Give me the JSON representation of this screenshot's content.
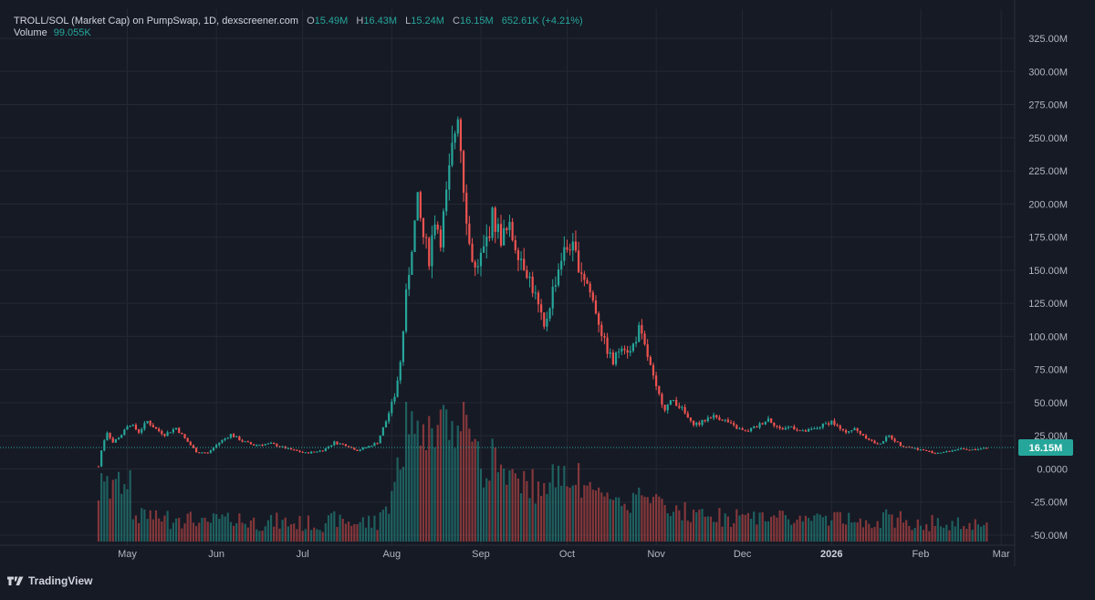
{
  "legend": {
    "symbol": "TROLL/SOL (Market Cap) on PumpSwap, 1D, dexscreener.com",
    "open_label": "O",
    "open": "15.49M",
    "high_label": "H",
    "high": "16.43M",
    "low_label": "L",
    "low": "15.24M",
    "close_label": "C",
    "close": "16.15M",
    "change": "652.61K (+4.21%)",
    "volume_label": "Volume",
    "volume_value": "99.055K"
  },
  "footer": {
    "brand": "TradingView",
    "logo_icon": "tradingview-logo-icon"
  },
  "colors": {
    "up": "#26a69a",
    "down": "#ef5350",
    "background": "#161a25",
    "grid": "#242833",
    "price_tag": "#26a69a"
  },
  "chart_data": {
    "type": "candlestick",
    "y_unit": "M",
    "ylim": [
      -55,
      330
    ],
    "yticks": [
      "325.00M",
      "300.00M",
      "275.00M",
      "250.00M",
      "225.00M",
      "200.00M",
      "175.00M",
      "150.00M",
      "125.00M",
      "100.00M",
      "75.00M",
      "50.00M",
      "25.00M",
      "0.0000",
      "-25.00M",
      "-50.00M"
    ],
    "ytick_values": [
      325,
      300,
      275,
      250,
      225,
      200,
      175,
      150,
      125,
      100,
      75,
      50,
      25,
      0,
      -25,
      -50
    ],
    "x_start": "2025-04-21",
    "x_end": "2026-02-28",
    "xticks": [
      {
        "label": "May",
        "date": "2025-05-01",
        "bold": false
      },
      {
        "label": "Jun",
        "date": "2025-06-01",
        "bold": false
      },
      {
        "label": "Jul",
        "date": "2025-07-01",
        "bold": false
      },
      {
        "label": "Aug",
        "date": "2025-08-01",
        "bold": false
      },
      {
        "label": "Sep",
        "date": "2025-09-01",
        "bold": false
      },
      {
        "label": "Oct",
        "date": "2025-10-01",
        "bold": false
      },
      {
        "label": "Nov",
        "date": "2025-11-01",
        "bold": false
      },
      {
        "label": "Dec",
        "date": "2025-12-01",
        "bold": false
      },
      {
        "label": "2026",
        "date": "2026-01-01",
        "bold": true
      },
      {
        "label": "Feb",
        "date": "2026-02-01",
        "bold": false
      },
      {
        "label": "Mar",
        "date": "2026-03-01",
        "bold": false
      }
    ],
    "last_price": {
      "label": "16.15M",
      "value": 16.15
    },
    "close_path": [
      [
        "2025-04-21",
        2
      ],
      [
        "2025-04-22",
        14
      ],
      [
        "2025-04-23",
        22
      ],
      [
        "2025-04-24",
        28
      ],
      [
        "2025-04-26",
        20
      ],
      [
        "2025-04-29",
        26
      ],
      [
        "2025-05-02",
        34
      ],
      [
        "2025-05-05",
        28
      ],
      [
        "2025-05-08",
        36
      ],
      [
        "2025-05-11",
        30
      ],
      [
        "2025-05-14",
        26
      ],
      [
        "2025-05-18",
        31
      ],
      [
        "2025-05-21",
        23
      ],
      [
        "2025-05-25",
        13
      ],
      [
        "2025-05-29",
        12
      ],
      [
        "2025-06-02",
        20
      ],
      [
        "2025-06-06",
        26
      ],
      [
        "2025-06-10",
        21
      ],
      [
        "2025-06-14",
        18
      ],
      [
        "2025-06-20",
        19
      ],
      [
        "2025-06-26",
        15
      ],
      [
        "2025-07-02",
        12
      ],
      [
        "2025-07-08",
        14
      ],
      [
        "2025-07-12",
        20
      ],
      [
        "2025-07-16",
        18
      ],
      [
        "2025-07-20",
        14
      ],
      [
        "2025-07-24",
        17
      ],
      [
        "2025-07-27",
        20
      ],
      [
        "2025-07-30",
        36
      ],
      [
        "2025-08-02",
        55
      ],
      [
        "2025-08-04",
        80
      ],
      [
        "2025-08-06",
        130
      ],
      [
        "2025-08-08",
        170
      ],
      [
        "2025-08-10",
        200
      ],
      [
        "2025-08-12",
        175
      ],
      [
        "2025-08-14",
        160
      ],
      [
        "2025-08-16",
        190
      ],
      [
        "2025-08-18",
        175
      ],
      [
        "2025-08-20",
        205
      ],
      [
        "2025-08-22",
        240
      ],
      [
        "2025-08-24",
        272
      ],
      [
        "2025-08-26",
        215
      ],
      [
        "2025-08-28",
        170
      ],
      [
        "2025-08-30",
        150
      ],
      [
        "2025-09-02",
        165
      ],
      [
        "2025-09-05",
        190
      ],
      [
        "2025-09-08",
        175
      ],
      [
        "2025-09-11",
        180
      ],
      [
        "2025-09-14",
        165
      ],
      [
        "2025-09-17",
        150
      ],
      [
        "2025-09-20",
        130
      ],
      [
        "2025-09-23",
        105
      ],
      [
        "2025-09-26",
        135
      ],
      [
        "2025-09-29",
        160
      ],
      [
        "2025-10-02",
        170
      ],
      [
        "2025-10-05",
        155
      ],
      [
        "2025-10-08",
        140
      ],
      [
        "2025-10-11",
        120
      ],
      [
        "2025-10-14",
        95
      ],
      [
        "2025-10-17",
        80
      ],
      [
        "2025-10-20",
        95
      ],
      [
        "2025-10-23",
        88
      ],
      [
        "2025-10-26",
        105
      ],
      [
        "2025-10-29",
        85
      ],
      [
        "2025-11-01",
        60
      ],
      [
        "2025-11-04",
        46
      ],
      [
        "2025-11-07",
        52
      ],
      [
        "2025-11-10",
        45
      ],
      [
        "2025-11-13",
        35
      ],
      [
        "2025-11-16",
        34
      ],
      [
        "2025-11-20",
        40
      ],
      [
        "2025-11-24",
        38
      ],
      [
        "2025-11-28",
        32
      ],
      [
        "2025-12-02",
        28
      ],
      [
        "2025-12-06",
        32
      ],
      [
        "2025-12-10",
        38
      ],
      [
        "2025-12-14",
        30
      ],
      [
        "2025-12-18",
        32
      ],
      [
        "2025-12-22",
        28
      ],
      [
        "2025-12-26",
        30
      ],
      [
        "2026-01-01",
        36
      ],
      [
        "2026-01-05",
        28
      ],
      [
        "2026-01-09",
        30
      ],
      [
        "2026-01-13",
        24
      ],
      [
        "2026-01-17",
        18
      ],
      [
        "2026-01-21",
        25
      ],
      [
        "2026-01-25",
        18
      ],
      [
        "2026-01-29",
        16
      ],
      [
        "2026-02-02",
        14
      ],
      [
        "2026-02-06",
        12
      ],
      [
        "2026-02-10",
        13
      ],
      [
        "2026-02-14",
        15
      ],
      [
        "2026-02-18",
        14
      ],
      [
        "2026-02-22",
        15.5
      ],
      [
        "2026-02-24",
        16.15
      ]
    ]
  }
}
